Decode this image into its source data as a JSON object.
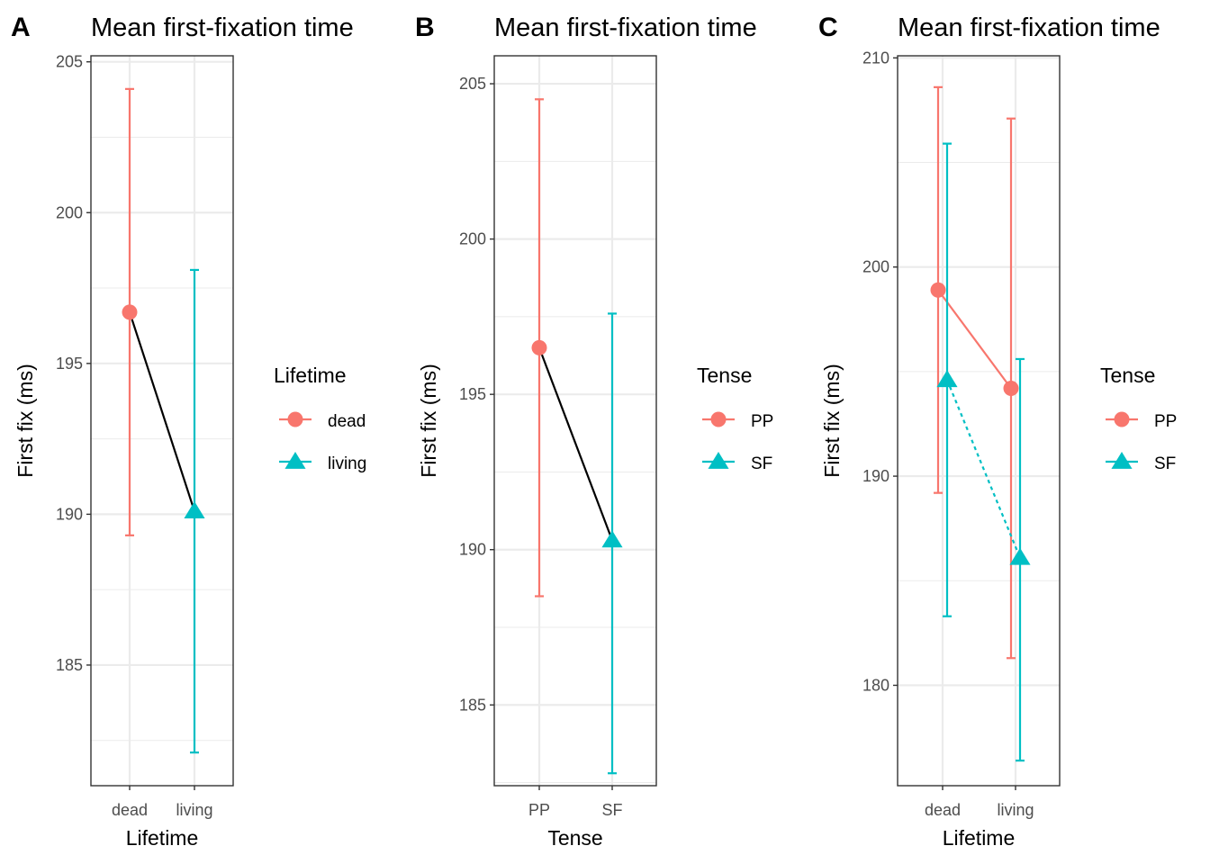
{
  "colors": {
    "dead_pp": "#F8766D",
    "living_sf": "#00BFC4",
    "connector": "#000000"
  },
  "chart_data": [
    {
      "panel_label": "A",
      "type": "line",
      "title": "Mean first-fixation time",
      "xlabel": "Lifetime",
      "ylabel": "First fix (ms)",
      "categories": [
        "dead",
        "living"
      ],
      "ylim": [
        181,
        205.2
      ],
      "yticks": [
        185,
        190,
        195,
        200,
        205
      ],
      "grid": true,
      "legend": {
        "title": "Lifetime",
        "placement": "right",
        "entries": [
          "dead",
          "living"
        ]
      },
      "series": [
        {
          "name": "dead",
          "color": "#F8766D",
          "marker": "circle",
          "points": [
            {
              "x": "dead",
              "y": 196.7,
              "lo": 189.3,
              "hi": 204.1
            }
          ]
        },
        {
          "name": "living",
          "color": "#00BFC4",
          "marker": "triangle",
          "points": [
            {
              "x": "living",
              "y": 190.1,
              "lo": 182.1,
              "hi": 198.1
            }
          ]
        }
      ],
      "connector": {
        "from": "dead",
        "to": "living",
        "color": "#000000",
        "style": "solid"
      }
    },
    {
      "panel_label": "B",
      "type": "line",
      "title": "Mean first-fixation time",
      "xlabel": "Tense",
      "ylabel": "First fix (ms)",
      "categories": [
        "PP",
        "SF"
      ],
      "ylim": [
        182.4,
        205.9
      ],
      "yticks": [
        185,
        190,
        195,
        200,
        205
      ],
      "grid": true,
      "legend": {
        "title": "Tense",
        "placement": "right",
        "entries": [
          "PP",
          "SF"
        ]
      },
      "series": [
        {
          "name": "PP",
          "color": "#F8766D",
          "marker": "circle",
          "points": [
            {
              "x": "PP",
              "y": 196.5,
              "lo": 188.5,
              "hi": 204.5
            }
          ]
        },
        {
          "name": "SF",
          "color": "#00BFC4",
          "marker": "triangle",
          "points": [
            {
              "x": "SF",
              "y": 190.3,
              "lo": 182.8,
              "hi": 197.6
            }
          ]
        }
      ],
      "connector": {
        "from": "PP",
        "to": "SF",
        "color": "#000000",
        "style": "solid"
      }
    },
    {
      "panel_label": "C",
      "type": "line",
      "title": "Mean first-fixation time",
      "xlabel": "Lifetime",
      "ylabel": "First fix (ms)",
      "categories": [
        "dead",
        "living"
      ],
      "ylim": [
        175.2,
        210.1
      ],
      "yticks": [
        180,
        190,
        200,
        210
      ],
      "grid": true,
      "legend": {
        "title": "Tense",
        "placement": "right",
        "entries": [
          "PP",
          "SF"
        ]
      },
      "series": [
        {
          "name": "PP",
          "color": "#F8766D",
          "marker": "circle",
          "line_style": "solid",
          "points": [
            {
              "x": "dead",
              "y": 198.9,
              "lo": 189.2,
              "hi": 208.6
            },
            {
              "x": "living",
              "y": 194.2,
              "lo": 181.3,
              "hi": 207.1
            }
          ]
        },
        {
          "name": "SF",
          "color": "#00BFC4",
          "marker": "triangle",
          "line_style": "dotted",
          "points": [
            {
              "x": "dead",
              "y": 194.6,
              "lo": 183.3,
              "hi": 205.9
            },
            {
              "x": "living",
              "y": 186.1,
              "lo": 176.4,
              "hi": 195.6
            }
          ]
        }
      ]
    }
  ]
}
